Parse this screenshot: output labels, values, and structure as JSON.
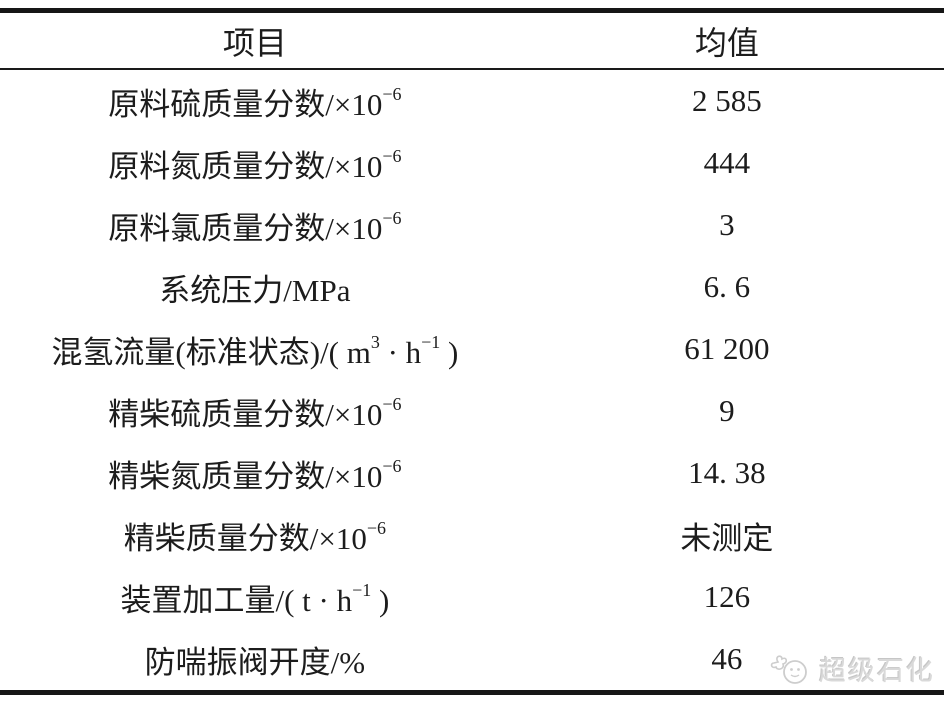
{
  "table": {
    "headers": {
      "item": "项目",
      "mean": "均值"
    },
    "rows": [
      {
        "label": [
          {
            "t": "原料硫质量分数/×10"
          },
          {
            "t": "−6",
            "sup": true
          }
        ],
        "value": "2 585"
      },
      {
        "label": [
          {
            "t": "原料氮质量分数/×10"
          },
          {
            "t": "−6",
            "sup": true
          }
        ],
        "value": "444"
      },
      {
        "label": [
          {
            "t": "原料氯质量分数/×10"
          },
          {
            "t": "−6",
            "sup": true
          }
        ],
        "value": "3"
      },
      {
        "label": [
          {
            "t": "系统压力/MPa"
          }
        ],
        "value": "6. 6"
      },
      {
        "label": [
          {
            "t": "混氢流量(标准状态)/( m"
          },
          {
            "t": "3",
            "sup": true
          },
          {
            "t": " · h"
          },
          {
            "t": "−1",
            "sup": true
          },
          {
            "t": " )"
          }
        ],
        "value": "61 200"
      },
      {
        "label": [
          {
            "t": "精柴硫质量分数/×10"
          },
          {
            "t": "−6",
            "sup": true
          }
        ],
        "value": "9"
      },
      {
        "label": [
          {
            "t": "精柴氮质量分数/×10"
          },
          {
            "t": "−6",
            "sup": true
          }
        ],
        "value": "14. 38"
      },
      {
        "label": [
          {
            "t": "精柴质量分数/×10"
          },
          {
            "t": "−6",
            "sup": true
          }
        ],
        "value": "未测定"
      },
      {
        "label": [
          {
            "t": "装置加工量/( t · h"
          },
          {
            "t": "−1",
            "sup": true
          },
          {
            "t": " )"
          }
        ],
        "value": "126"
      },
      {
        "label": [
          {
            "t": "防喘振阀开度/%"
          }
        ],
        "value": "46"
      }
    ]
  },
  "watermark": {
    "text": "超级石化"
  },
  "colors": {
    "text": "#1c1c1c",
    "rule": "#161616",
    "watermark": "#d9d9d9"
  }
}
